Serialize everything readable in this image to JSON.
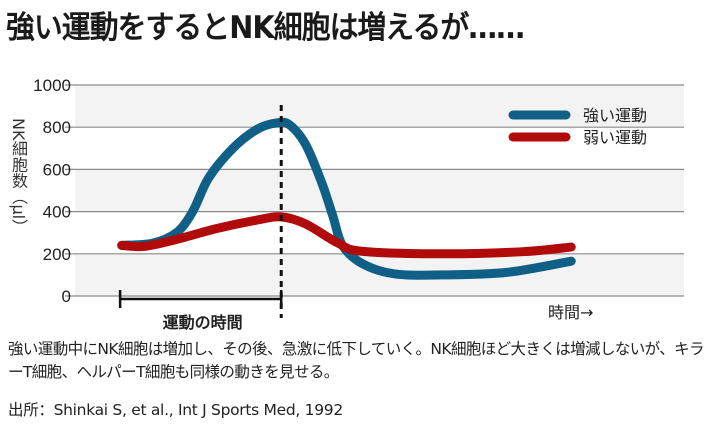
{
  "title": "強い運動をするとNK細胞は増えるが……",
  "caption": "強い運動中にNK細胞は増加し、その後、急激に低下していく。NK細胞ほど大きくは増減しないが、キラーT細胞、ヘルパーT細胞も同様の動きを見せる。",
  "source": "出所：Shinkai S, et al., Int J Sports Med, 1992",
  "chart_data": {
    "type": "line",
    "title": "強い運動をするとNK細胞は増えるが……",
    "ylabel": "NK細胞数（µl）",
    "xlabel": "時間→",
    "ylim": [
      0,
      1000
    ],
    "xlim": [
      -0.28,
      3.5
    ],
    "yticks": [
      0,
      200,
      400,
      600,
      800,
      1000
    ],
    "grid": true,
    "legend_position": "top-right",
    "exercise_period": {
      "start": 0,
      "end": 1,
      "label": "運動の時間"
    },
    "series": [
      {
        "name": "強い運動",
        "color": "#0f5f86",
        "points": [
          [
            0.01,
            240
          ],
          [
            0.2,
            250
          ],
          [
            0.35,
            300
          ],
          [
            0.45,
            400
          ],
          [
            0.55,
            560
          ],
          [
            0.7,
            700
          ],
          [
            0.85,
            790
          ],
          [
            0.97,
            820
          ],
          [
            1.05,
            812
          ],
          [
            1.15,
            720
          ],
          [
            1.25,
            540
          ],
          [
            1.32,
            380
          ],
          [
            1.38,
            240
          ],
          [
            1.5,
            155
          ],
          [
            1.7,
            105
          ],
          [
            2.0,
            100
          ],
          [
            2.4,
            112
          ],
          [
            2.8,
            165
          ]
        ]
      },
      {
        "name": "弱い運動",
        "color": "#b10a0a",
        "points": [
          [
            0.01,
            240
          ],
          [
            0.15,
            235
          ],
          [
            0.35,
            268
          ],
          [
            0.6,
            320
          ],
          [
            0.85,
            360
          ],
          [
            1.0,
            375
          ],
          [
            1.15,
            342
          ],
          [
            1.35,
            252
          ],
          [
            1.5,
            212
          ],
          [
            2.0,
            200
          ],
          [
            2.5,
            210
          ],
          [
            2.8,
            232
          ]
        ]
      }
    ]
  }
}
